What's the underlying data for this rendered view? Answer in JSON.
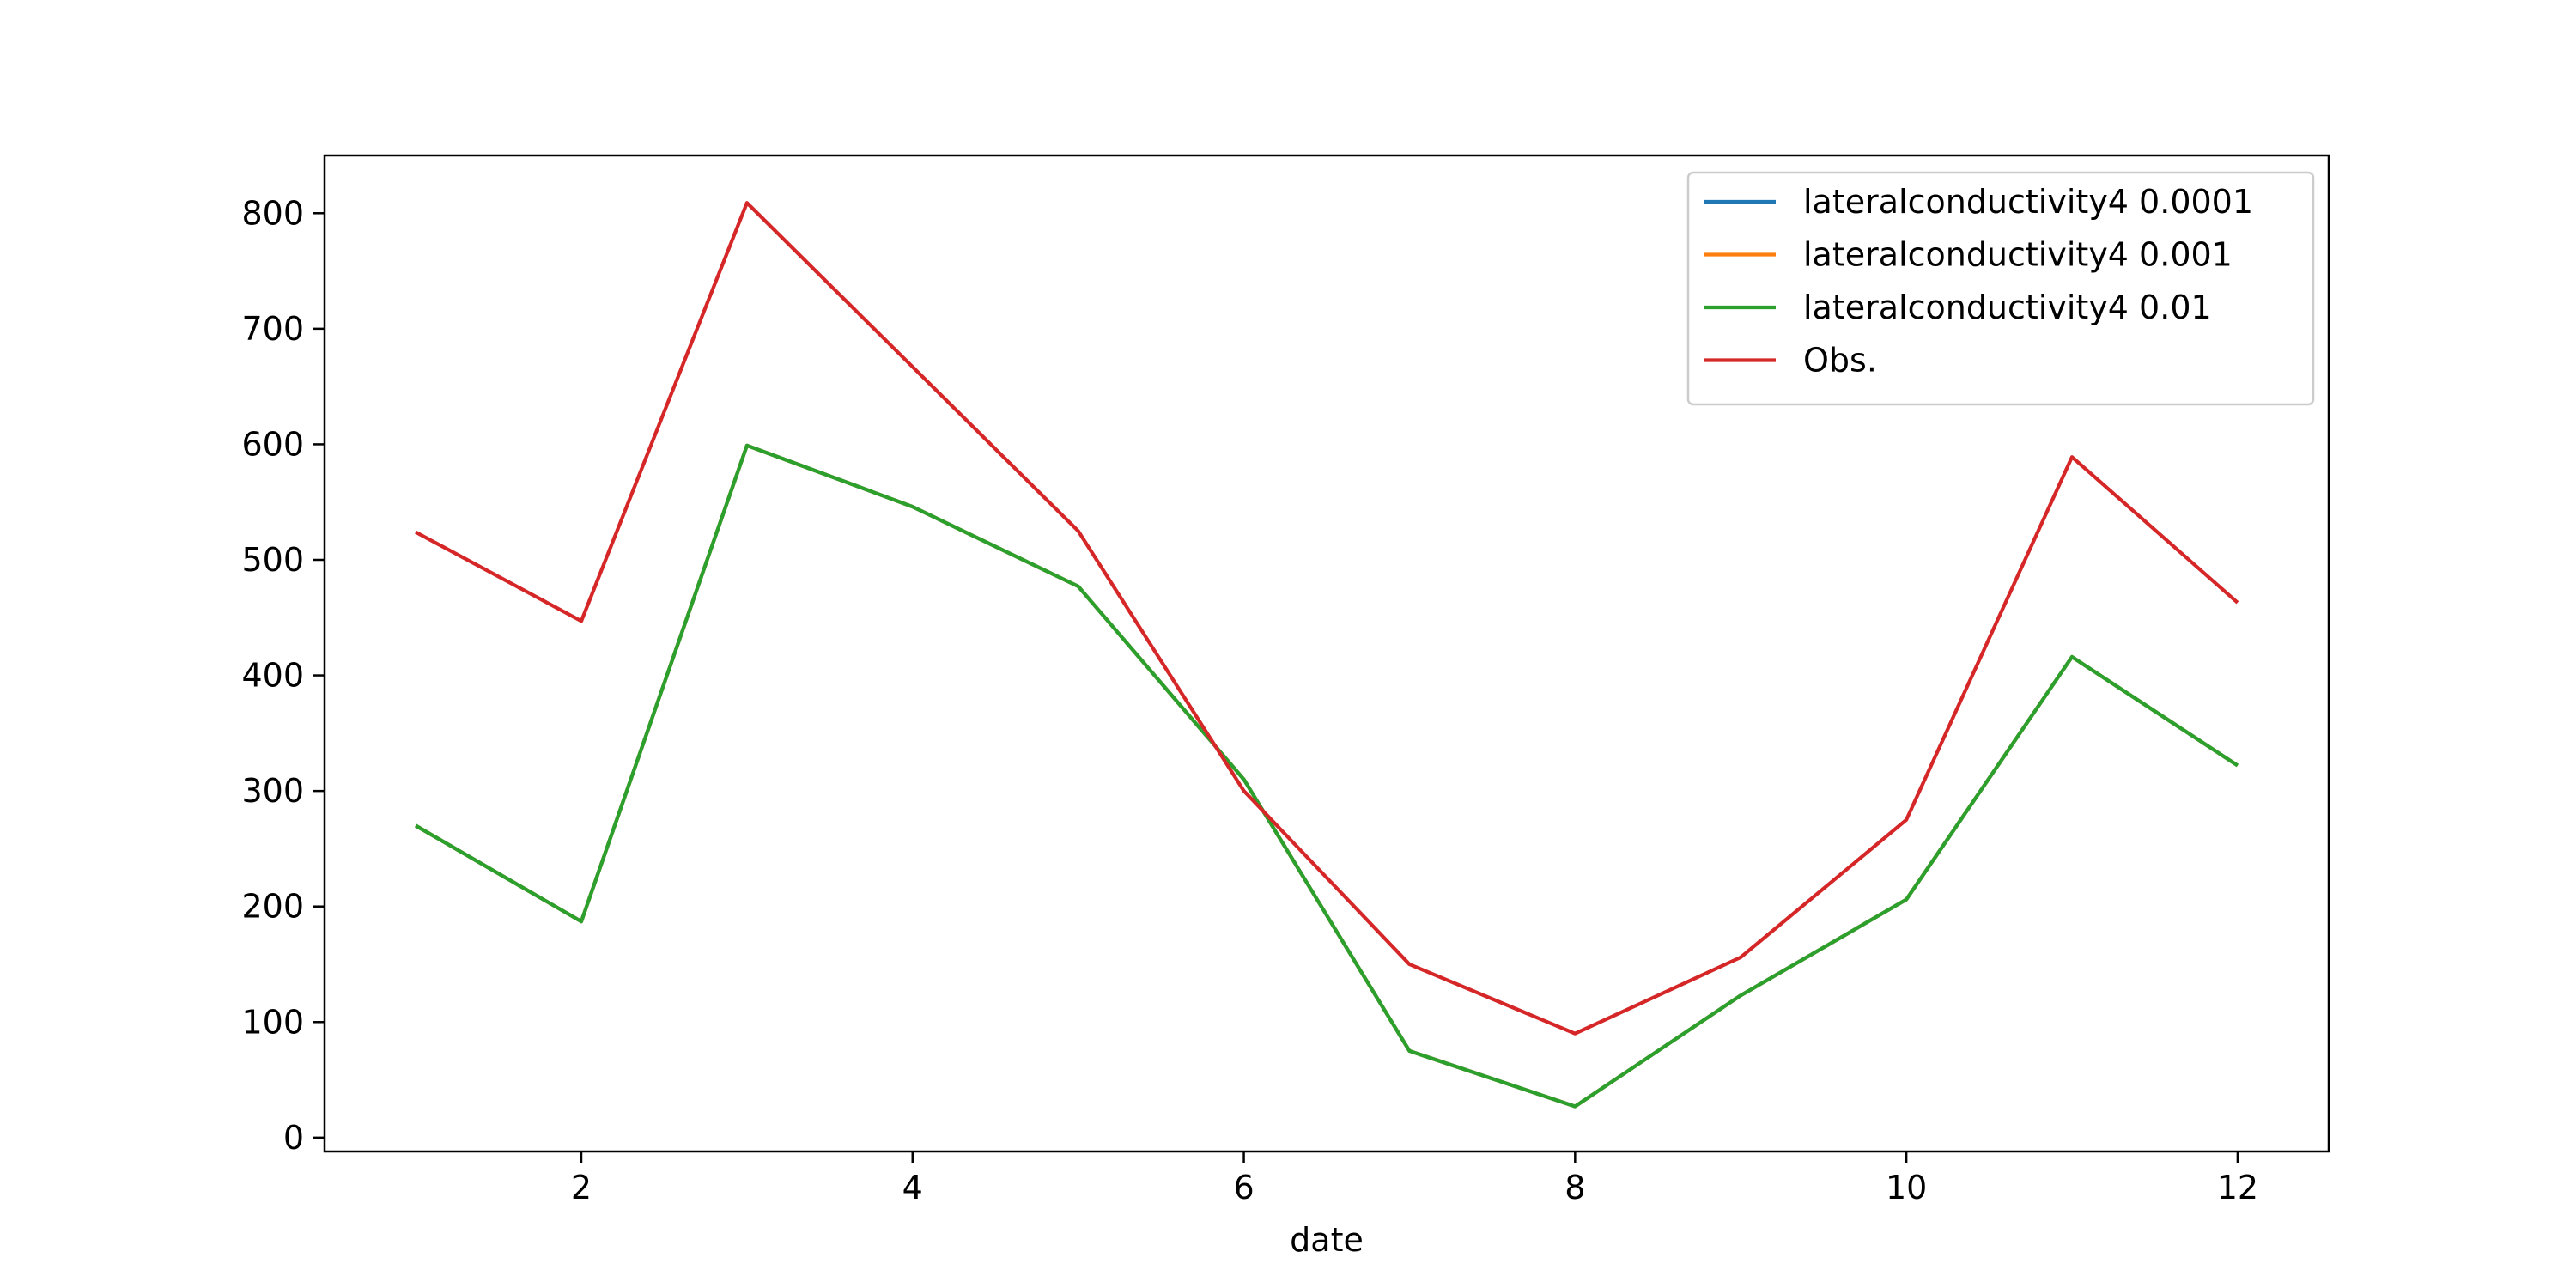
{
  "chart_data": {
    "type": "line",
    "title": "",
    "xlabel": "date",
    "ylabel": "",
    "xlim": [
      0.45,
      12.55
    ],
    "ylim": [
      -12,
      850
    ],
    "xticks": [
      2,
      4,
      6,
      8,
      10,
      12
    ],
    "yticks": [
      0,
      100,
      200,
      300,
      400,
      500,
      600,
      700,
      800
    ],
    "grid": false,
    "legend_position": "top-right",
    "x": [
      1,
      2,
      3,
      4,
      5,
      6,
      7,
      8,
      9,
      10,
      11,
      12
    ],
    "series": [
      {
        "name": "lateralconductivity4 0.0001",
        "color": "#1f77b4",
        "values": [
          270,
          187,
          599,
          546,
          477,
          310,
          75,
          27,
          123,
          206,
          416,
          322
        ]
      },
      {
        "name": "lateralconductivity4 0.001",
        "color": "#ff7f0e",
        "values": [
          270,
          187,
          599,
          546,
          477,
          310,
          75,
          27,
          123,
          206,
          416,
          322
        ]
      },
      {
        "name": "lateralconductivity4 0.01",
        "color": "#2ca02c",
        "values": [
          270,
          187,
          599,
          546,
          477,
          310,
          75,
          27,
          123,
          206,
          416,
          322
        ]
      },
      {
        "name": "Obs.",
        "color": "#d62728",
        "values": [
          524,
          447,
          809,
          667,
          525,
          300,
          150,
          90,
          156,
          275,
          589,
          463
        ]
      }
    ]
  }
}
